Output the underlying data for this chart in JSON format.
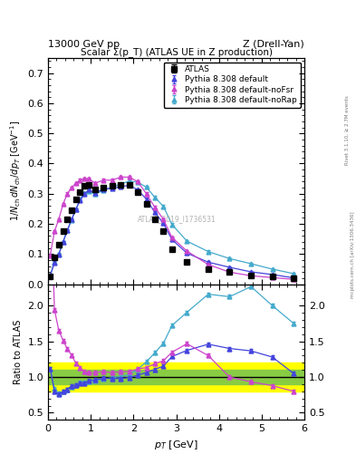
{
  "title_left": "13000 GeV pp",
  "title_right": "Z (Drell-Yan)",
  "plot_title": "Scalar Σ(p_T) (ATLAS UE in Z production)",
  "ylabel_main": "1/N_{ch} dN_{ch}/dp_T [GeV]",
  "ylabel_ratio": "Ratio to ATLAS",
  "xlabel": "p_T [GeV]",
  "watermark": "ATLAS_2019_I1736531",
  "right_label": "mcplots.cern.ch [arXiv:1306.3436]",
  "rivet_label": "Rivet 3.1.10, ≥ 2.7M events",
  "atlas_x": [
    0.05,
    0.15,
    0.25,
    0.35,
    0.45,
    0.55,
    0.65,
    0.75,
    0.85,
    0.95,
    1.1,
    1.3,
    1.5,
    1.7,
    1.9,
    2.1,
    2.3,
    2.5,
    2.7,
    2.9,
    3.25,
    3.75,
    4.25,
    4.75,
    5.25,
    5.75
  ],
  "atlas_y": [
    0.025,
    0.09,
    0.13,
    0.175,
    0.215,
    0.245,
    0.28,
    0.305,
    0.325,
    0.33,
    0.315,
    0.32,
    0.325,
    0.33,
    0.33,
    0.305,
    0.265,
    0.215,
    0.175,
    0.115,
    0.075,
    0.05,
    0.04,
    0.03,
    0.025,
    0.02
  ],
  "atlas_yerr": [
    0.004,
    0.005,
    0.005,
    0.005,
    0.005,
    0.005,
    0.005,
    0.005,
    0.005,
    0.005,
    0.005,
    0.005,
    0.005,
    0.005,
    0.005,
    0.005,
    0.005,
    0.005,
    0.005,
    0.005,
    0.005,
    0.004,
    0.004,
    0.003,
    0.003,
    0.003
  ],
  "py_default_x": [
    0.05,
    0.15,
    0.25,
    0.35,
    0.45,
    0.55,
    0.65,
    0.75,
    0.85,
    0.95,
    1.1,
    1.3,
    1.5,
    1.7,
    1.9,
    2.1,
    2.3,
    2.5,
    2.7,
    2.9,
    3.25,
    3.75,
    4.25,
    4.75,
    5.25,
    5.75
  ],
  "py_default_y": [
    0.028,
    0.072,
    0.098,
    0.14,
    0.178,
    0.215,
    0.248,
    0.278,
    0.298,
    0.313,
    0.303,
    0.315,
    0.318,
    0.323,
    0.328,
    0.313,
    0.282,
    0.238,
    0.202,
    0.148,
    0.103,
    0.073,
    0.056,
    0.041,
    0.032,
    0.021
  ],
  "py_default_color": "#4444dd",
  "py_nofsr_x": [
    0.05,
    0.15,
    0.25,
    0.35,
    0.45,
    0.55,
    0.65,
    0.75,
    0.85,
    0.95,
    1.1,
    1.3,
    1.5,
    1.7,
    1.9,
    2.1,
    2.3,
    2.5,
    2.7,
    2.9,
    3.25,
    3.75,
    4.25,
    4.75,
    5.25,
    5.75
  ],
  "py_nofsr_y": [
    0.095,
    0.175,
    0.215,
    0.265,
    0.3,
    0.32,
    0.335,
    0.345,
    0.35,
    0.35,
    0.335,
    0.345,
    0.345,
    0.355,
    0.355,
    0.34,
    0.3,
    0.255,
    0.215,
    0.155,
    0.11,
    0.065,
    0.04,
    0.028,
    0.022,
    0.016
  ],
  "py_nofsr_color": "#cc44cc",
  "py_norap_x": [
    0.05,
    0.15,
    0.25,
    0.35,
    0.45,
    0.55,
    0.65,
    0.75,
    0.85,
    0.95,
    1.1,
    1.3,
    1.5,
    1.7,
    1.9,
    2.1,
    2.3,
    2.5,
    2.7,
    2.9,
    3.25,
    3.75,
    4.25,
    4.75,
    5.25,
    5.75
  ],
  "py_norap_y": [
    0.028,
    0.075,
    0.1,
    0.14,
    0.178,
    0.212,
    0.248,
    0.282,
    0.302,
    0.308,
    0.298,
    0.312,
    0.322,
    0.332,
    0.342,
    0.338,
    0.322,
    0.288,
    0.258,
    0.198,
    0.143,
    0.108,
    0.085,
    0.068,
    0.05,
    0.035
  ],
  "py_norap_color": "#44aacc",
  "xlim": [
    0,
    6
  ],
  "ylim_main": [
    0,
    0.75
  ],
  "ylim_ratio": [
    0.4,
    2.3
  ],
  "yticks_main": [
    0.0,
    0.1,
    0.2,
    0.3,
    0.4,
    0.5,
    0.6,
    0.7
  ],
  "yticks_ratio": [
    0.5,
    1.0,
    1.5,
    2.0
  ],
  "xticks": [
    0,
    1,
    2,
    3,
    4,
    5,
    6
  ],
  "band_green_lo": 0.9,
  "band_green_hi": 1.1,
  "band_yellow_lo": 0.8,
  "band_yellow_hi": 1.2,
  "legend_labels": [
    "ATLAS",
    "Pythia 8.308 default",
    "Pythia 8.308 default-noFsr",
    "Pythia 8.308 default-noRap"
  ],
  "legend_colors": [
    "black",
    "#4444dd",
    "#cc44cc",
    "#44aacc"
  ]
}
